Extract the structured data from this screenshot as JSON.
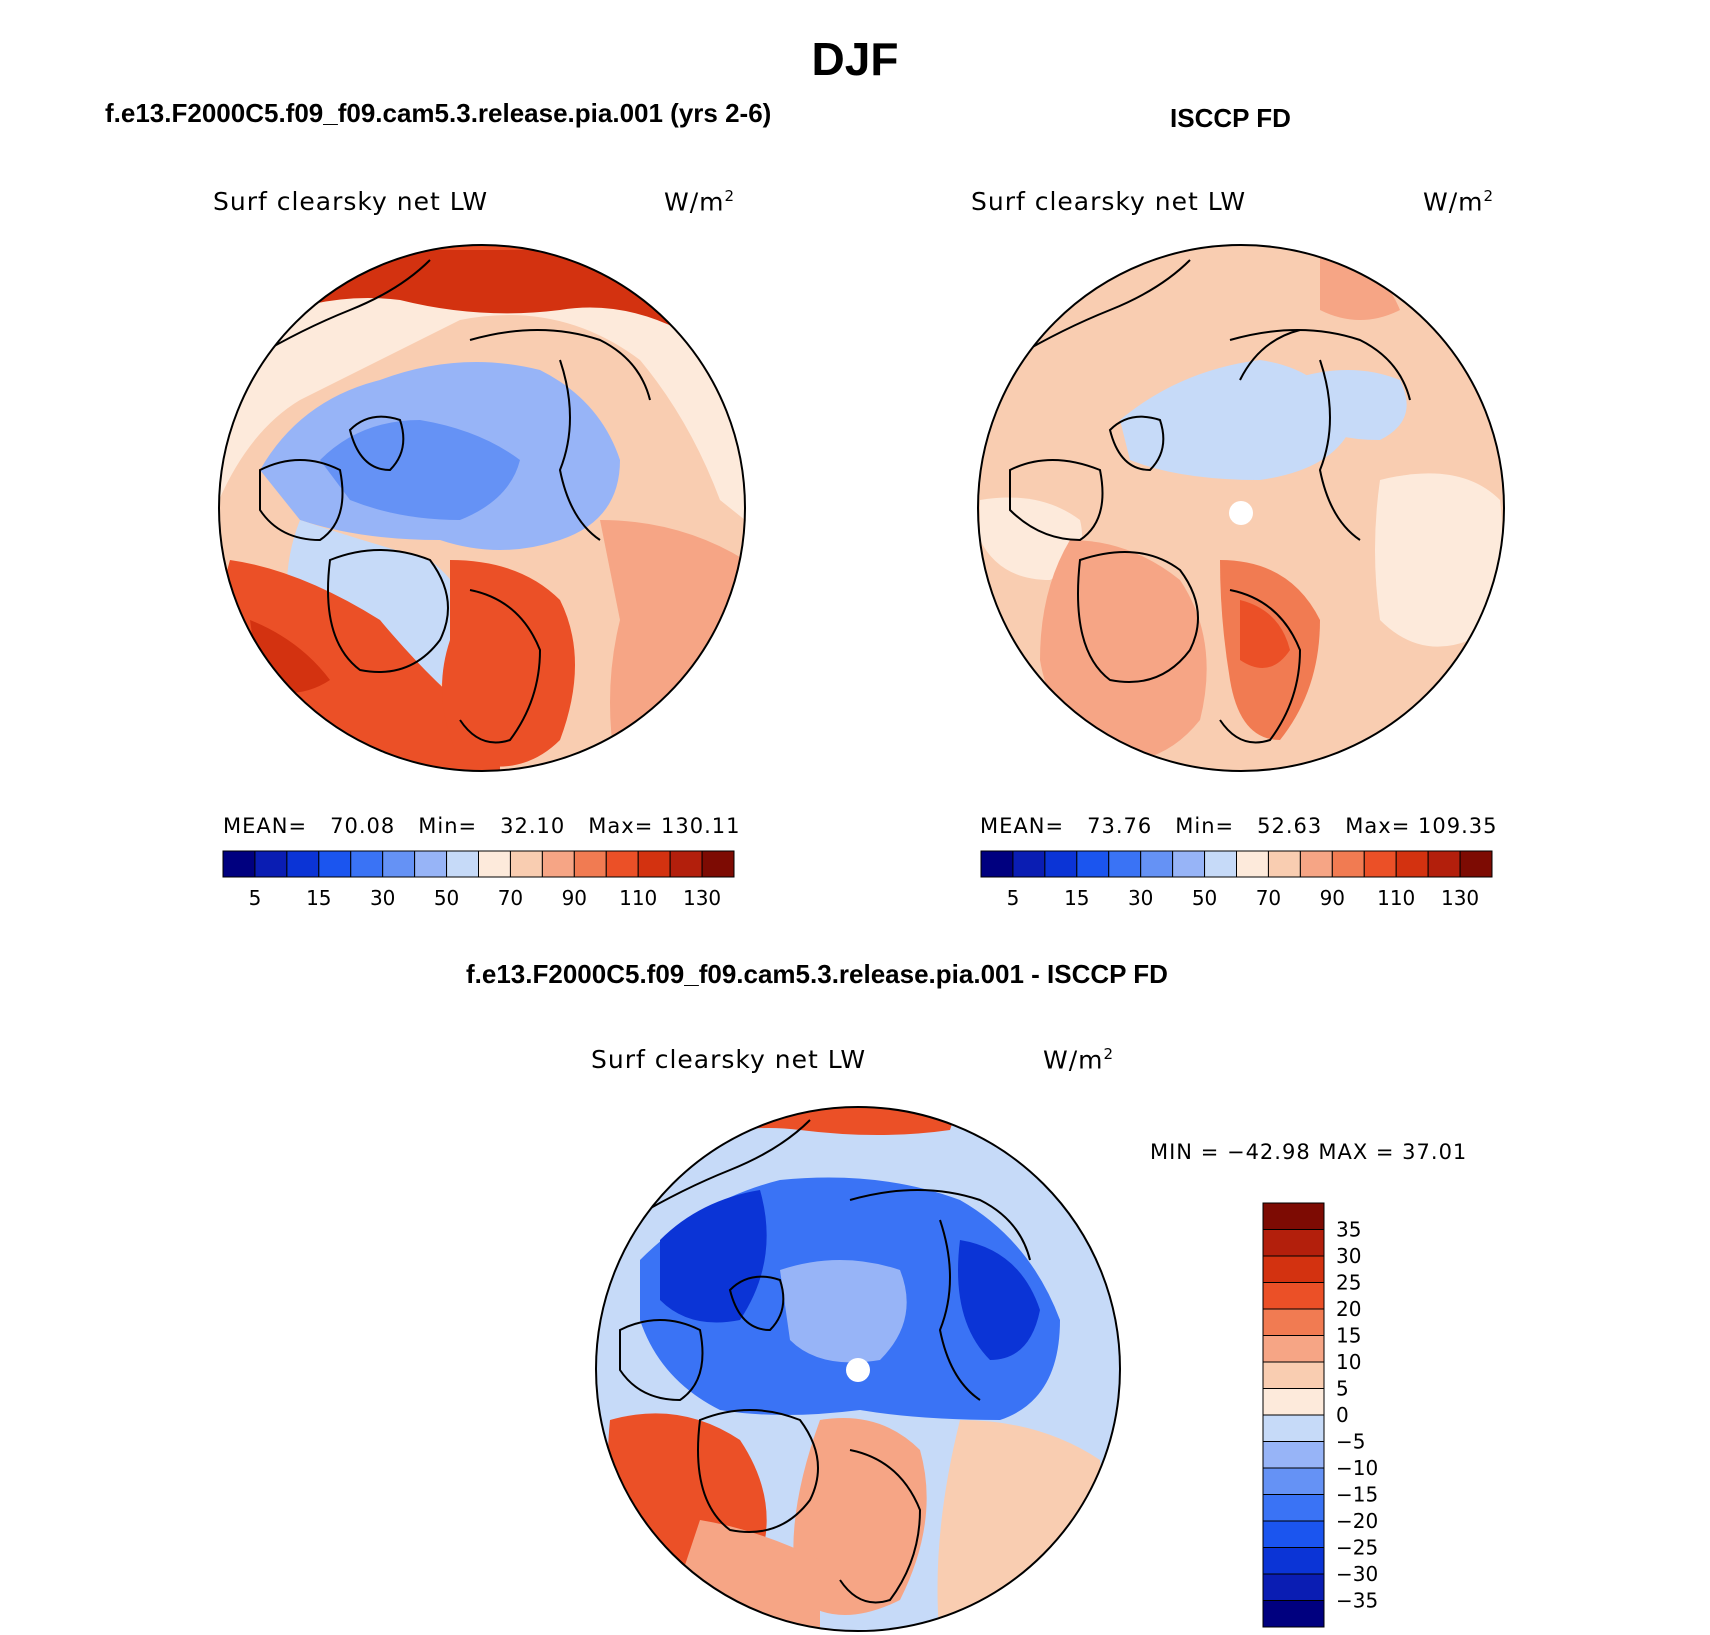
{
  "title": "DJF",
  "panels": {
    "model": {
      "title": "f.e13.F2000C5.f09_f09.cam5.3.release.pia.001 (yrs 2-6)",
      "variable": "Surf clearsky net LW",
      "units": "W/m",
      "units_sup": "2",
      "mean_label": "MEAN=",
      "mean": "70.08",
      "min_label": "Min=",
      "min": "32.10",
      "max_label": "Max=",
      "max": "130.11"
    },
    "obs": {
      "title": "ISCCP FD",
      "variable": "Surf clearsky net LW",
      "units": "W/m",
      "units_sup": "2",
      "mean_label": "MEAN=",
      "mean": "73.76",
      "min_label": "Min=",
      "min": "52.63",
      "max_label": "Max=",
      "max": "109.35"
    },
    "diff": {
      "title": "f.e13.F2000C5.f09_f09.cam5.3.release.pia.001 - ISCCP FD",
      "variable": "Surf clearsky net LW",
      "units": "W/m",
      "units_sup": "2",
      "minmax_text": "MIN = −42.98 MAX =   37.01"
    }
  },
  "colorbars": {
    "field": {
      "tick_labels": [
        "5",
        "15",
        "30",
        "50",
        "70",
        "90",
        "110",
        "130"
      ],
      "colors": [
        "#00007f",
        "#0a1db3",
        "#0b34d6",
        "#1b55ef",
        "#3a73f5",
        "#6592f5",
        "#97b4f7",
        "#c6daf8",
        "#fdeadb",
        "#f9cdb1",
        "#f6a585",
        "#f17b52",
        "#eb5027",
        "#d33210",
        "#b31f0c",
        "#7d0b03"
      ]
    },
    "diff": {
      "tick_labels": [
        "35",
        "30",
        "25",
        "20",
        "15",
        "10",
        "5",
        "0",
        "−5",
        "−10",
        "−15",
        "−20",
        "−25",
        "−30",
        "−35"
      ],
      "colors": [
        "#7d0b03",
        "#b31f0c",
        "#d33210",
        "#eb5027",
        "#f17b52",
        "#f6a585",
        "#f9cdb1",
        "#fdeadb",
        "#c6daf8",
        "#97b4f7",
        "#6592f5",
        "#3a73f5",
        "#1b55ef",
        "#0b34d6",
        "#0a1db3",
        "#00007f"
      ]
    }
  }
}
